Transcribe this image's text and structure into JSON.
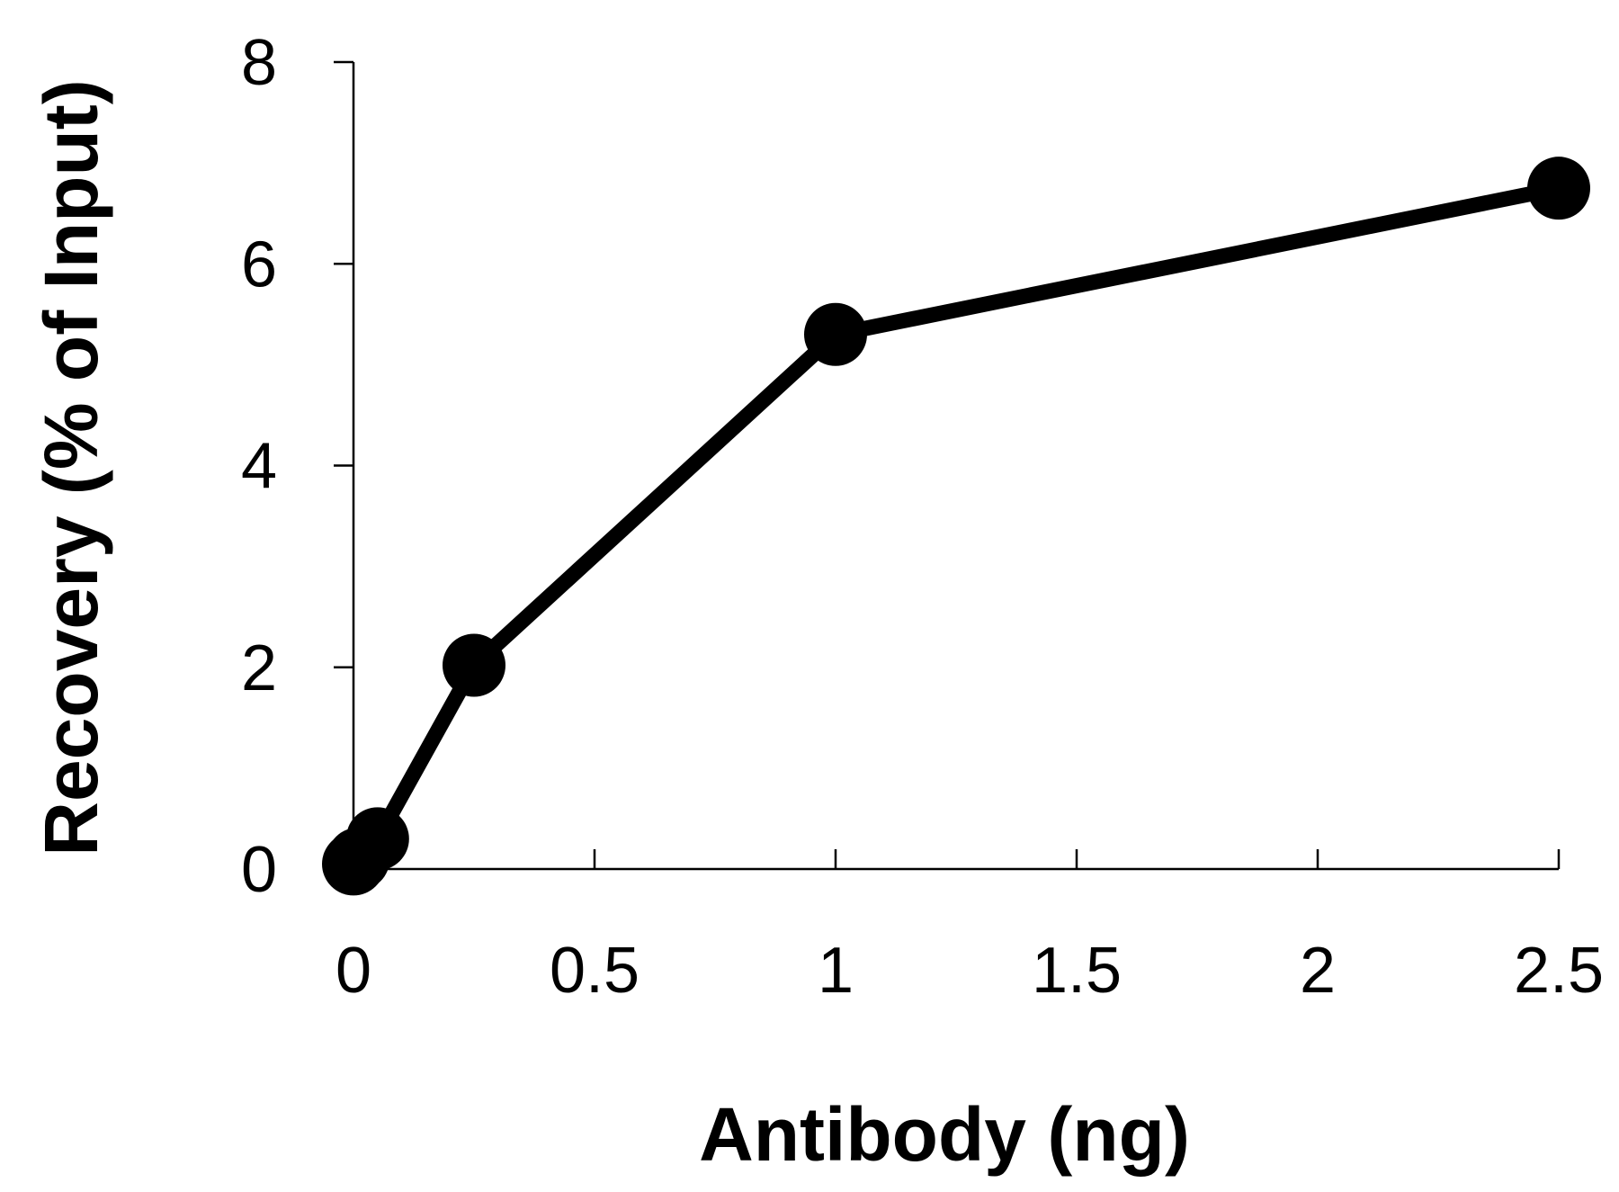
{
  "chart_data": {
    "type": "line",
    "xlabel": "Antibody (ng)",
    "ylabel": "Recovery (% of Input)",
    "xlim": [
      0,
      2.5
    ],
    "ylim": [
      0,
      8
    ],
    "x_ticks": [
      "0",
      "0.5",
      "1",
      "1.5",
      "2",
      "2.5"
    ],
    "y_ticks": [
      "0",
      "2",
      "4",
      "6",
      "8"
    ],
    "grid": false,
    "legend": "none",
    "series": [
      {
        "color": "#000000",
        "marker": "circle",
        "points": [
          {
            "x": 0,
            "y": 0.05
          },
          {
            "x": 0.01,
            "y": 0.1
          },
          {
            "x": 0.05,
            "y": 0.3
          },
          {
            "x": 0.25,
            "y": 2.02
          },
          {
            "x": 1,
            "y": 5.3
          },
          {
            "x": 2.5,
            "y": 6.75
          }
        ]
      }
    ]
  }
}
